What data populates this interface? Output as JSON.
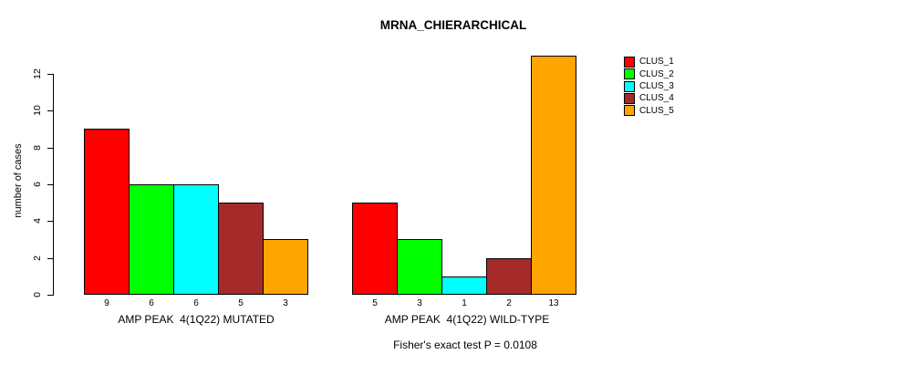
{
  "chart_data": {
    "type": "bar",
    "title": "MRNA_CHIERARCHICAL",
    "ylabel": "number of cases",
    "ylim": [
      0,
      13
    ],
    "yticks": [
      0,
      2,
      4,
      6,
      8,
      10,
      12
    ],
    "grid": false,
    "legend_position": "top-right",
    "series": [
      {
        "name": "CLUS_1",
        "color": "#FF0000"
      },
      {
        "name": "CLUS_2",
        "color": "#00FF00"
      },
      {
        "name": "CLUS_3",
        "color": "#00FFFF"
      },
      {
        "name": "CLUS_4",
        "color": "#A52A2A"
      },
      {
        "name": "CLUS_5",
        "color": "#FFA500"
      }
    ],
    "groups": [
      {
        "label": "AMP PEAK  4(1Q22) MUTATED",
        "values": [
          9,
          6,
          6,
          5,
          3
        ]
      },
      {
        "label": "AMP PEAK  4(1Q22) WILD-TYPE",
        "values": [
          5,
          3,
          1,
          2,
          13
        ]
      }
    ],
    "footer": "Fisher's exact test P = 0.0108"
  }
}
